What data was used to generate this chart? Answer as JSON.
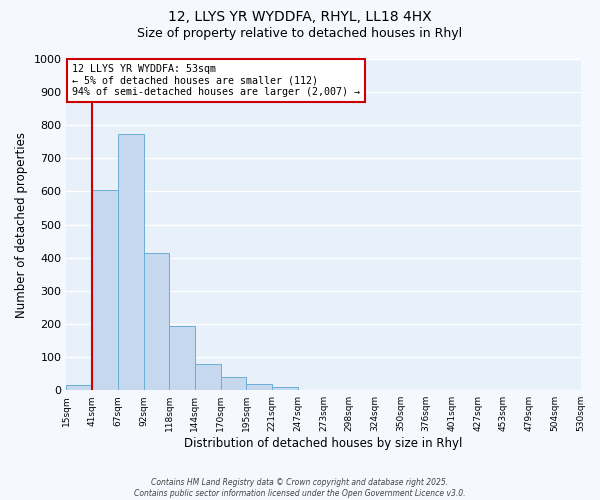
{
  "title_line1": "12, LLYS YR WYDDFA, RHYL, LL18 4HX",
  "title_line2": "Size of property relative to detached houses in Rhyl",
  "xlabel": "Distribution of detached houses by size in Rhyl",
  "ylabel": "Number of detached properties",
  "bin_labels": [
    "15sqm",
    "41sqm",
    "67sqm",
    "92sqm",
    "118sqm",
    "144sqm",
    "170sqm",
    "195sqm",
    "221sqm",
    "247sqm",
    "273sqm",
    "298sqm",
    "324sqm",
    "350sqm",
    "376sqm",
    "401sqm",
    "427sqm",
    "453sqm",
    "479sqm",
    "504sqm",
    "530sqm"
  ],
  "bar_heights": [
    15,
    605,
    775,
    415,
    193,
    78,
    40,
    18,
    10,
    0,
    0,
    0,
    0,
    0,
    0,
    0,
    0,
    0,
    0,
    0
  ],
  "bar_color": "#c5d8ed",
  "bar_edge_color": "#6aaed6",
  "background_color": "#e8f0fa",
  "grid_color": "#ffffff",
  "vline_x": 1,
  "vline_color": "#cc0000",
  "annotation_text": "12 LLYS YR WYDDFA: 53sqm\n← 5% of detached houses are smaller (112)\n94% of semi-detached houses are larger (2,007) →",
  "annotation_box_color": "#ffffff",
  "annotation_box_edge": "#cc0000",
  "ylim": [
    0,
    1000
  ],
  "yticks": [
    0,
    100,
    200,
    300,
    400,
    500,
    600,
    700,
    800,
    900,
    1000
  ],
  "footnote1": "Contains HM Land Registry data © Crown copyright and database right 2025.",
  "footnote2": "Contains public sector information licensed under the Open Government Licence v3.0.",
  "n_bins": 20,
  "fig_bg": "#f5f8ff"
}
